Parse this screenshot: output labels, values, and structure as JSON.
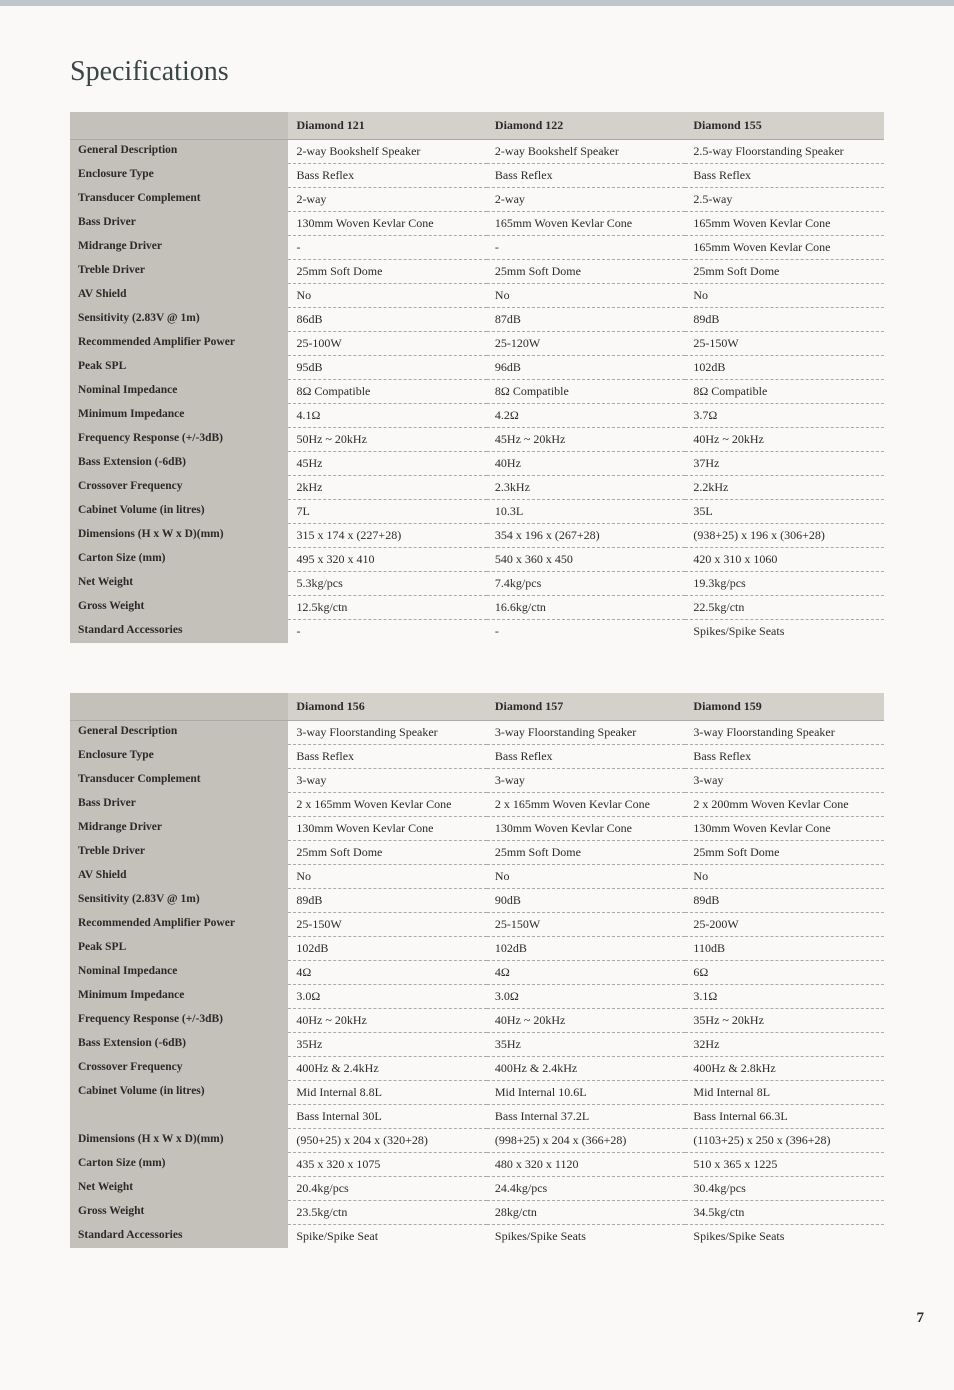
{
  "title": "Specifications",
  "pageNumber": "7",
  "table1": {
    "headers": [
      "",
      "Diamond 121",
      "Diamond 122",
      "Diamond 155"
    ],
    "rows": [
      {
        "label": "General Description",
        "c1": "2-way Bookshelf Speaker",
        "c2": "2-way Bookshelf Speaker",
        "c3": "2.5-way Floorstanding Speaker"
      },
      {
        "label": "Enclosure Type",
        "c1": "Bass Reflex",
        "c2": "Bass Reflex",
        "c3": "Bass Reflex"
      },
      {
        "label": "Transducer Complement",
        "c1": "2-way",
        "c2": "2-way",
        "c3": "2.5-way"
      },
      {
        "label": "Bass Driver",
        "c1": "130mm Woven Kevlar Cone",
        "c2": "165mm Woven Kevlar Cone",
        "c3": "165mm Woven Kevlar Cone"
      },
      {
        "label": "Midrange Driver",
        "c1": "-",
        "c2": "-",
        "c3": "165mm Woven Kevlar Cone"
      },
      {
        "label": "Treble Driver",
        "c1": "25mm Soft Dome",
        "c2": "25mm Soft Dome",
        "c3": "25mm Soft Dome"
      },
      {
        "label": "AV Shield",
        "c1": "No",
        "c2": "No",
        "c3": "No"
      },
      {
        "label": "Sensitivity (2.83V @ 1m)",
        "c1": "86dB",
        "c2": "87dB",
        "c3": "89dB"
      },
      {
        "label": "Recommended Amplifier Power",
        "c1": "25-100W",
        "c2": "25-120W",
        "c3": "25-150W"
      },
      {
        "label": "Peak SPL",
        "c1": "95dB",
        "c2": "96dB",
        "c3": "102dB"
      },
      {
        "label": "Nominal Impedance",
        "c1": "8Ω Compatible",
        "c2": "8Ω Compatible",
        "c3": "8Ω Compatible"
      },
      {
        "label": "Minimum Impedance",
        "c1": "4.1Ω",
        "c2": "4.2Ω",
        "c3": "3.7Ω"
      },
      {
        "label": "Frequency Response (+/-3dB)",
        "c1": "50Hz ~ 20kHz",
        "c2": "45Hz ~ 20kHz",
        "c3": "40Hz ~ 20kHz"
      },
      {
        "label": "Bass Extension (-6dB)",
        "c1": "45Hz",
        "c2": "40Hz",
        "c3": "37Hz"
      },
      {
        "label": "Crossover Frequency",
        "c1": "2kHz",
        "c2": "2.3kHz",
        "c3": "2.2kHz"
      },
      {
        "label": "Cabinet Volume (in litres)",
        "c1": "7L",
        "c2": "10.3L",
        "c3": "35L"
      },
      {
        "label": "Dimensions (H x W x D)(mm)",
        "c1": "315 x 174 x (227+28)",
        "c2": "354 x 196 x (267+28)",
        "c3": "(938+25)  x 196 x (306+28)"
      },
      {
        "label": "Carton Size (mm)",
        "c1": "495 x 320 x 410",
        "c2": "540 x 360 x 450",
        "c3": "420 x 310 x 1060"
      },
      {
        "label": "Net Weight",
        "c1": "5.3kg/pcs",
        "c2": "7.4kg/pcs",
        "c3": "19.3kg/pcs"
      },
      {
        "label": "Gross Weight",
        "c1": "12.5kg/ctn",
        "c2": "16.6kg/ctn",
        "c3": "22.5kg/ctn"
      },
      {
        "label": "Standard Accessories",
        "c1": "-",
        "c2": "-",
        "c3": "Spikes/Spike Seats"
      }
    ]
  },
  "table2": {
    "headers": [
      "",
      "Diamond 156",
      "Diamond 157",
      "Diamond 159"
    ],
    "rows": [
      {
        "label": "General Description",
        "c1": "3-way Floorstanding Speaker",
        "c2": "3-way Floorstanding Speaker",
        "c3": "3-way Floorstanding Speaker"
      },
      {
        "label": "Enclosure Type",
        "c1": "Bass Reflex",
        "c2": "Bass Reflex",
        "c3": "Bass Reflex"
      },
      {
        "label": "Transducer Complement",
        "c1": "3-way",
        "c2": "3-way",
        "c3": "3-way"
      },
      {
        "label": "Bass Driver",
        "c1": "2 x 165mm Woven Kevlar Cone",
        "c2": "2 x 165mm Woven Kevlar Cone",
        "c3": "2 x 200mm Woven Kevlar Cone"
      },
      {
        "label": "Midrange Driver",
        "c1": "130mm Woven Kevlar Cone",
        "c2": "130mm Woven Kevlar Cone",
        "c3": "130mm Woven Kevlar Cone"
      },
      {
        "label": "Treble Driver",
        "c1": "25mm Soft Dome",
        "c2": "25mm Soft Dome",
        "c3": "25mm Soft Dome"
      },
      {
        "label": "AV Shield",
        "c1": "No",
        "c2": "No",
        "c3": "No"
      },
      {
        "label": "Sensitivity (2.83V @ 1m)",
        "c1": "89dB",
        "c2": "90dB",
        "c3": "89dB"
      },
      {
        "label": "Recommended Amplifier Power",
        "c1": "25-150W",
        "c2": "25-150W",
        "c3": "25-200W"
      },
      {
        "label": "Peak SPL",
        "c1": "102dB",
        "c2": "102dB",
        "c3": "110dB"
      },
      {
        "label": "Nominal Impedance",
        "c1": "4Ω",
        "c2": "4Ω",
        "c3": "6Ω"
      },
      {
        "label": "Minimum Impedance",
        "c1": "3.0Ω",
        "c2": "3.0Ω",
        "c3": "3.1Ω"
      },
      {
        "label": "Frequency Response (+/-3dB)",
        "c1": "40Hz ~ 20kHz",
        "c2": "40Hz ~ 20kHz",
        "c3": "35Hz ~ 20kHz"
      },
      {
        "label": "Bass Extension (-6dB)",
        "c1": "35Hz",
        "c2": "35Hz",
        "c3": "32Hz"
      },
      {
        "label": "Crossover Frequency",
        "c1": "400Hz & 2.4kHz",
        "c2": "400Hz & 2.4kHz",
        "c3": "400Hz & 2.8kHz"
      },
      {
        "label": "Cabinet Volume (in litres)",
        "c1": "Mid Internal  8.8L",
        "c2": "Mid Internal  10.6L",
        "c3": "Mid Internal  8L"
      },
      {
        "label": "",
        "c1": "Bass Internal  30L",
        "c2": "Bass Internal  37.2L",
        "c3": "Bass Internal  66.3L"
      },
      {
        "label": "Dimensions (H x W x D)(mm)",
        "c1": "(950+25) x 204 x (320+28)",
        "c2": "(998+25) x 204 x (366+28)",
        "c3": "(1103+25) x 250 x (396+28)"
      },
      {
        "label": "Carton Size (mm)",
        "c1": "435 x 320 x 1075",
        "c2": "480 x 320 x 1120",
        "c3": "510 x 365 x 1225"
      },
      {
        "label": "Net Weight",
        "c1": "20.4kg/pcs",
        "c2": "24.4kg/pcs",
        "c3": "30.4kg/pcs"
      },
      {
        "label": "Gross Weight",
        "c1": "23.5kg/ctn",
        "c2": "28kg/ctn",
        "c3": "34.5kg/ctn"
      },
      {
        "label": "Standard Accessories",
        "c1": "Spike/Spike Seat",
        "c2": "Spikes/Spike Seats",
        "c3": "Spikes/Spike Seats"
      }
    ]
  }
}
